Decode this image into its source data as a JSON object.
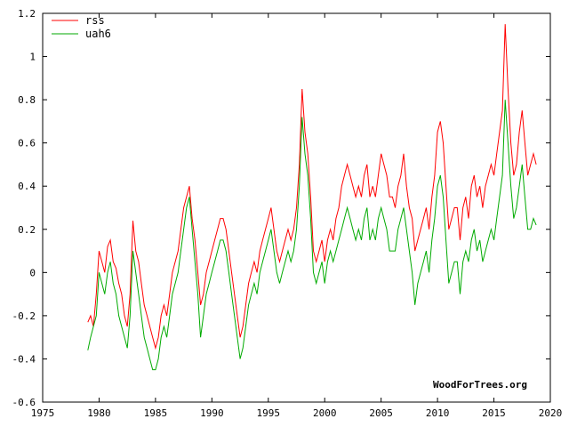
{
  "chart_data": {
    "type": "line",
    "title": "",
    "xlabel": "",
    "ylabel": "",
    "xlim": [
      1975,
      2020
    ],
    "ylim": [
      -0.6,
      1.2
    ],
    "x_ticks": [
      1975,
      1980,
      1985,
      1990,
      1995,
      2000,
      2005,
      2010,
      2015,
      2020
    ],
    "y_ticks": [
      -0.6,
      -0.4,
      -0.2,
      0,
      0.2,
      0.4,
      0.6,
      0.8,
      1,
      1.2
    ],
    "y_tick_labels": [
      "-0.6",
      "-0.4",
      "-0.2",
      "0",
      "0.2",
      "0.4",
      "0.6",
      "0.8",
      "1",
      "1.2"
    ],
    "grid": false,
    "legend": {
      "position": "top-left"
    },
    "credit": "WoodForTrees.org",
    "series": [
      {
        "name": "rss",
        "color": "#ff0000",
        "x": [
          1979,
          1979.25,
          1979.5,
          1979.75,
          1980,
          1980.25,
          1980.5,
          1980.75,
          1981,
          1981.25,
          1981.5,
          1981.75,
          1982,
          1982.25,
          1982.5,
          1982.75,
          1983,
          1983.25,
          1983.5,
          1983.75,
          1984,
          1984.25,
          1984.5,
          1984.75,
          1985,
          1985.25,
          1985.5,
          1985.75,
          1986,
          1986.25,
          1986.5,
          1986.75,
          1987,
          1987.25,
          1987.5,
          1987.75,
          1988,
          1988.25,
          1988.5,
          1988.75,
          1989,
          1989.25,
          1989.5,
          1989.75,
          1990,
          1990.25,
          1990.5,
          1990.75,
          1991,
          1991.25,
          1991.5,
          1991.75,
          1992,
          1992.25,
          1992.5,
          1992.75,
          1993,
          1993.25,
          1993.5,
          1993.75,
          1994,
          1994.25,
          1994.5,
          1994.75,
          1995,
          1995.25,
          1995.5,
          1995.75,
          1996,
          1996.25,
          1996.5,
          1996.75,
          1997,
          1997.25,
          1997.5,
          1997.75,
          1998,
          1998.25,
          1998.5,
          1998.75,
          1999,
          1999.25,
          1999.5,
          1999.75,
          2000,
          2000.25,
          2000.5,
          2000.75,
          2001,
          2001.25,
          2001.5,
          2001.75,
          2002,
          2002.25,
          2002.5,
          2002.75,
          2003,
          2003.25,
          2003.5,
          2003.75,
          2004,
          2004.25,
          2004.5,
          2004.75,
          2005,
          2005.25,
          2005.5,
          2005.75,
          2006,
          2006.25,
          2006.5,
          2006.75,
          2007,
          2007.25,
          2007.5,
          2007.75,
          2008,
          2008.25,
          2008.5,
          2008.75,
          2009,
          2009.25,
          2009.5,
          2009.75,
          2010,
          2010.25,
          2010.5,
          2010.75,
          2011,
          2011.25,
          2011.5,
          2011.75,
          2012,
          2012.25,
          2012.5,
          2012.75,
          2013,
          2013.25,
          2013.5,
          2013.75,
          2014,
          2014.25,
          2014.5,
          2014.75,
          2015,
          2015.25,
          2015.5,
          2015.75,
          2016,
          2016.25,
          2016.5,
          2016.75,
          2017,
          2017.25,
          2017.5,
          2017.75,
          2018,
          2018.25,
          2018.5,
          2018.75
        ],
        "values": [
          -0.23,
          -0.2,
          -0.25,
          -0.1,
          0.1,
          0.05,
          0.0,
          0.12,
          0.15,
          0.05,
          0.02,
          -0.05,
          -0.1,
          -0.2,
          -0.25,
          -0.1,
          0.24,
          0.1,
          0.05,
          -0.05,
          -0.15,
          -0.2,
          -0.25,
          -0.3,
          -0.35,
          -0.3,
          -0.2,
          -0.15,
          -0.2,
          -0.1,
          0.0,
          0.05,
          0.1,
          0.2,
          0.3,
          0.35,
          0.4,
          0.25,
          0.15,
          0.0,
          -0.15,
          -0.1,
          0.0,
          0.05,
          0.1,
          0.15,
          0.2,
          0.25,
          0.25,
          0.2,
          0.1,
          0.0,
          -0.1,
          -0.2,
          -0.3,
          -0.25,
          -0.15,
          -0.05,
          0.0,
          0.05,
          0.0,
          0.1,
          0.15,
          0.2,
          0.25,
          0.3,
          0.2,
          0.1,
          0.05,
          0.1,
          0.15,
          0.2,
          0.15,
          0.2,
          0.3,
          0.5,
          0.85,
          0.65,
          0.55,
          0.35,
          0.1,
          0.05,
          0.1,
          0.15,
          0.05,
          0.15,
          0.2,
          0.15,
          0.25,
          0.3,
          0.4,
          0.45,
          0.5,
          0.45,
          0.4,
          0.35,
          0.4,
          0.35,
          0.45,
          0.5,
          0.35,
          0.4,
          0.35,
          0.45,
          0.55,
          0.5,
          0.45,
          0.35,
          0.35,
          0.3,
          0.4,
          0.45,
          0.55,
          0.4,
          0.3,
          0.25,
          0.1,
          0.15,
          0.2,
          0.25,
          0.3,
          0.2,
          0.35,
          0.45,
          0.65,
          0.7,
          0.6,
          0.4,
          0.2,
          0.25,
          0.3,
          0.3,
          0.15,
          0.3,
          0.35,
          0.25,
          0.4,
          0.45,
          0.35,
          0.4,
          0.3,
          0.4,
          0.45,
          0.5,
          0.45,
          0.55,
          0.65,
          0.75,
          1.15,
          0.85,
          0.6,
          0.45,
          0.5,
          0.65,
          0.75,
          0.6,
          0.45,
          0.5,
          0.55,
          0.5
        ]
      },
      {
        "name": "uah6",
        "color": "#00aa00",
        "x": [
          1979,
          1979.25,
          1979.5,
          1979.75,
          1980,
          1980.25,
          1980.5,
          1980.75,
          1981,
          1981.25,
          1981.5,
          1981.75,
          1982,
          1982.25,
          1982.5,
          1982.75,
          1983,
          1983.25,
          1983.5,
          1983.75,
          1984,
          1984.25,
          1984.5,
          1984.75,
          1985,
          1985.25,
          1985.5,
          1985.75,
          1986,
          1986.25,
          1986.5,
          1986.75,
          1987,
          1987.25,
          1987.5,
          1987.75,
          1988,
          1988.25,
          1988.5,
          1988.75,
          1989,
          1989.25,
          1989.5,
          1989.75,
          1990,
          1990.25,
          1990.5,
          1990.75,
          1991,
          1991.25,
          1991.5,
          1991.75,
          1992,
          1992.25,
          1992.5,
          1992.75,
          1993,
          1993.25,
          1993.5,
          1993.75,
          1994,
          1994.25,
          1994.5,
          1994.75,
          1995,
          1995.25,
          1995.5,
          1995.75,
          1996,
          1996.25,
          1996.5,
          1996.75,
          1997,
          1997.25,
          1997.5,
          1997.75,
          1998,
          1998.25,
          1998.5,
          1998.75,
          1999,
          1999.25,
          1999.5,
          1999.75,
          2000,
          2000.25,
          2000.5,
          2000.75,
          2001,
          2001.25,
          2001.5,
          2001.75,
          2002,
          2002.25,
          2002.5,
          2002.75,
          2003,
          2003.25,
          2003.5,
          2003.75,
          2004,
          2004.25,
          2004.5,
          2004.75,
          2005,
          2005.25,
          2005.5,
          2005.75,
          2006,
          2006.25,
          2006.5,
          2006.75,
          2007,
          2007.25,
          2007.5,
          2007.75,
          2008,
          2008.25,
          2008.5,
          2008.75,
          2009,
          2009.25,
          2009.5,
          2009.75,
          2010,
          2010.25,
          2010.5,
          2010.75,
          2011,
          2011.25,
          2011.5,
          2011.75,
          2012,
          2012.25,
          2012.5,
          2012.75,
          2013,
          2013.25,
          2013.5,
          2013.75,
          2014,
          2014.25,
          2014.5,
          2014.75,
          2015,
          2015.25,
          2015.5,
          2015.75,
          2016,
          2016.25,
          2016.5,
          2016.75,
          2017,
          2017.25,
          2017.5,
          2017.75,
          2018,
          2018.25,
          2018.5,
          2018.75
        ],
        "values": [
          -0.36,
          -0.3,
          -0.25,
          -0.2,
          0.0,
          -0.05,
          -0.1,
          0.0,
          0.05,
          -0.05,
          -0.1,
          -0.2,
          -0.25,
          -0.3,
          -0.35,
          -0.2,
          0.1,
          0.0,
          -0.1,
          -0.2,
          -0.3,
          -0.35,
          -0.4,
          -0.45,
          -0.45,
          -0.4,
          -0.3,
          -0.25,
          -0.3,
          -0.2,
          -0.1,
          -0.05,
          0.0,
          0.1,
          0.2,
          0.3,
          0.35,
          0.2,
          0.05,
          -0.1,
          -0.3,
          -0.2,
          -0.1,
          -0.05,
          0.0,
          0.05,
          0.1,
          0.15,
          0.15,
          0.1,
          0.0,
          -0.1,
          -0.2,
          -0.3,
          -0.4,
          -0.35,
          -0.25,
          -0.15,
          -0.1,
          -0.05,
          -0.1,
          0.0,
          0.05,
          0.1,
          0.15,
          0.2,
          0.1,
          0.0,
          -0.05,
          0.0,
          0.05,
          0.1,
          0.05,
          0.1,
          0.2,
          0.4,
          0.72,
          0.55,
          0.45,
          0.25,
          0.0,
          -0.05,
          0.0,
          0.05,
          -0.05,
          0.05,
          0.1,
          0.05,
          0.1,
          0.15,
          0.2,
          0.25,
          0.3,
          0.25,
          0.2,
          0.15,
          0.2,
          0.15,
          0.25,
          0.3,
          0.15,
          0.2,
          0.15,
          0.25,
          0.3,
          0.25,
          0.2,
          0.1,
          0.1,
          0.1,
          0.2,
          0.25,
          0.3,
          0.2,
          0.1,
          0.0,
          -0.15,
          -0.05,
          0.0,
          0.05,
          0.1,
          0.0,
          0.15,
          0.25,
          0.4,
          0.45,
          0.35,
          0.15,
          -0.05,
          0.0,
          0.05,
          0.05,
          -0.1,
          0.05,
          0.1,
          0.05,
          0.15,
          0.2,
          0.1,
          0.15,
          0.05,
          0.1,
          0.15,
          0.2,
          0.15,
          0.25,
          0.35,
          0.45,
          0.8,
          0.6,
          0.4,
          0.25,
          0.3,
          0.4,
          0.5,
          0.35,
          0.2,
          0.2,
          0.25,
          0.22
        ]
      }
    ]
  }
}
